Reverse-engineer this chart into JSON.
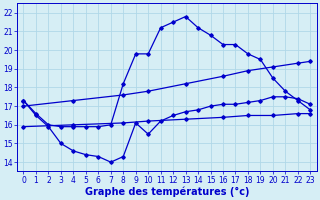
{
  "title": "Graphe des températures (°c)",
  "bg_color": "#d6eef5",
  "line_color": "#0000cc",
  "grid_color": "#b0d8e8",
  "xlim": [
    -0.5,
    23.5
  ],
  "ylim": [
    13.5,
    22.5
  ],
  "xticks": [
    0,
    1,
    2,
    3,
    4,
    5,
    6,
    7,
    8,
    9,
    10,
    11,
    12,
    13,
    14,
    15,
    16,
    17,
    18,
    19,
    20,
    21,
    22,
    23
  ],
  "yticks": [
    14,
    15,
    16,
    17,
    18,
    19,
    20,
    21,
    22
  ],
  "top_line": {
    "x": [
      0,
      1,
      2,
      3,
      4,
      5,
      6,
      7,
      8,
      9,
      10,
      11,
      12,
      13,
      14,
      15,
      16,
      17,
      18,
      19,
      20,
      21,
      22,
      23
    ],
    "y": [
      17.3,
      16.6,
      16.0,
      15.9,
      15.9,
      15.9,
      15.9,
      16.0,
      18.2,
      19.8,
      19.8,
      21.2,
      21.5,
      21.8,
      21.2,
      20.8,
      20.3,
      20.3,
      19.8,
      19.5,
      18.5,
      17.8,
      17.3,
      16.8
    ]
  },
  "upper_ref_line": {
    "x": [
      0,
      4,
      8,
      10,
      13,
      16,
      18,
      20,
      22,
      23
    ],
    "y": [
      17.0,
      17.3,
      17.6,
      17.8,
      18.2,
      18.6,
      18.9,
      19.1,
      19.3,
      19.4
    ]
  },
  "lower_ref_line": {
    "x": [
      0,
      4,
      8,
      10,
      13,
      16,
      18,
      20,
      22,
      23
    ],
    "y": [
      15.9,
      16.0,
      16.1,
      16.2,
      16.3,
      16.4,
      16.5,
      16.5,
      16.6,
      16.6
    ]
  },
  "bottom_line": {
    "x": [
      0,
      1,
      2,
      3,
      4,
      5,
      6,
      7,
      8,
      9,
      10,
      11,
      12,
      13,
      14,
      15,
      16,
      17,
      18,
      19,
      20,
      21,
      22,
      23
    ],
    "y": [
      17.3,
      16.5,
      15.9,
      15.0,
      14.6,
      14.4,
      14.3,
      14.0,
      14.3,
      16.1,
      15.5,
      16.2,
      16.5,
      16.7,
      16.8,
      17.0,
      17.1,
      17.1,
      17.2,
      17.3,
      17.5,
      17.5,
      17.4,
      17.1
    ]
  },
  "xlabel_fontsize": 7,
  "tick_fontsize": 5.5
}
